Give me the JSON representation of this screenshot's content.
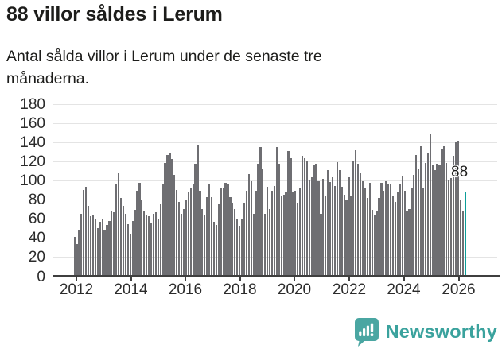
{
  "header": {
    "title": "88 villor såldes i Lerum",
    "subtitle": "Antal sålda villor i Lerum under de senaste tre månaderna."
  },
  "chart_data": {
    "type": "bar",
    "title": "88 villor såldes i Lerum",
    "subtitle": "Antal sålda villor i Lerum under de senaste tre månaderna.",
    "xlabel": "",
    "ylabel": "",
    "ylim": [
      0,
      180
    ],
    "grid": true,
    "y_ticks": [
      0,
      20,
      40,
      60,
      80,
      100,
      120,
      140,
      160,
      180
    ],
    "x_tick_labels": [
      "2012",
      "2014",
      "2016",
      "2018",
      "2020",
      "2022",
      "2024",
      "2026"
    ],
    "frequency": "monthly",
    "x_start": "2012-01",
    "x_end": "2026-01",
    "values": [
      41,
      33,
      48,
      65,
      90,
      93,
      73,
      62,
      63,
      60,
      50,
      56,
      60,
      48,
      53,
      57,
      67,
      66,
      95,
      108,
      81,
      73,
      65,
      54,
      44,
      57,
      69,
      89,
      97,
      80,
      67,
      64,
      62,
      55,
      65,
      66,
      60,
      75,
      95,
      118,
      126,
      128,
      122,
      105,
      90,
      77,
      65,
      70,
      80,
      88,
      91,
      96,
      117,
      137,
      89,
      70,
      63,
      82,
      96,
      82,
      56,
      53,
      75,
      91,
      91,
      97,
      96,
      82,
      76,
      70,
      60,
      52,
      60,
      76,
      89,
      106,
      99,
      65,
      89,
      117,
      134,
      111,
      65,
      93,
      70,
      89,
      94,
      134,
      117,
      83,
      85,
      88,
      130,
      123,
      87,
      89,
      76,
      92,
      125,
      123,
      120,
      100,
      103,
      116,
      117,
      99,
      65,
      101,
      84,
      110,
      98,
      103,
      94,
      119,
      110,
      93,
      85,
      80,
      103,
      83,
      120,
      131,
      117,
      108,
      99,
      91,
      81,
      97,
      69,
      63,
      67,
      81,
      97,
      89,
      99,
      96,
      96,
      83,
      77,
      88,
      96,
      104,
      89,
      68,
      70,
      91,
      105,
      126,
      112,
      135,
      91,
      118,
      128,
      148,
      116,
      110,
      117,
      116,
      133,
      135,
      118,
      100,
      102,
      125,
      139,
      141,
      80,
      67,
      88
    ],
    "highlight_index": 168,
    "highlight_value_label": "88",
    "bar_color": "#6e6e72",
    "highlight_color": "#0d9e99",
    "legend": "none"
  },
  "footer": {
    "brand": "Newsworthy",
    "logo_icon": "newsworthy-chart-speech-bubble-icon",
    "brand_color": "#4aa6a2"
  }
}
